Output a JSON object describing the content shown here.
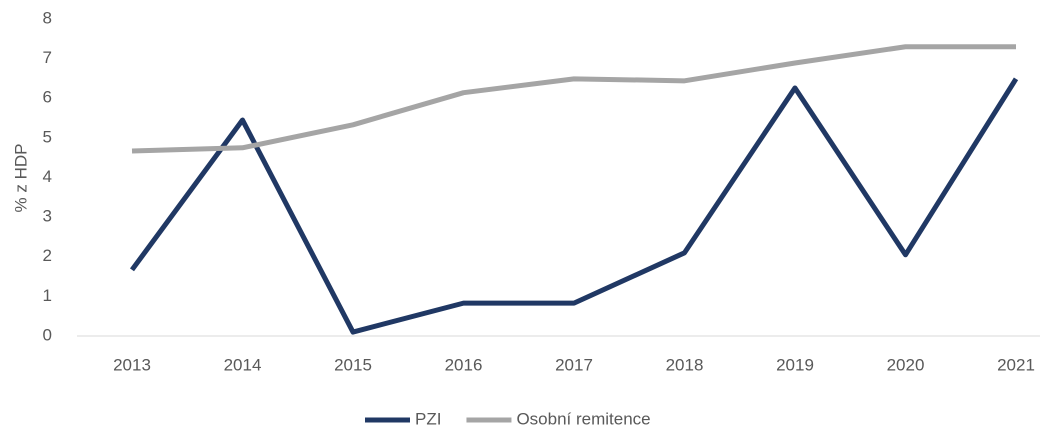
{
  "chart_data": {
    "type": "line",
    "y_label": "% z HDP",
    "categories": [
      "2013",
      "2014",
      "2015",
      "2016",
      "2017",
      "2018",
      "2019",
      "2020",
      "2021"
    ],
    "series": [
      {
        "name": "PZI",
        "color": "#203864",
        "values": [
          1.67,
          5.45,
          0.1,
          0.83,
          0.83,
          2.1,
          6.26,
          2.05,
          6.49
        ]
      },
      {
        "name": "Osobní remitence",
        "color": "#a5a5a5",
        "values": [
          4.67,
          4.75,
          5.33,
          6.14,
          6.49,
          6.44,
          6.89,
          7.3,
          7.3
        ]
      }
    ],
    "ylim": [
      0,
      8
    ],
    "yticks": [
      0,
      1,
      2,
      3,
      4,
      5,
      6,
      7,
      8
    ],
    "grid": false,
    "legend": "bottom"
  }
}
